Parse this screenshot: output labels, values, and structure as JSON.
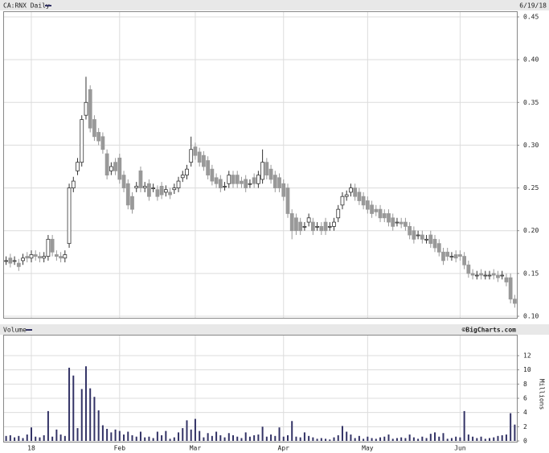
{
  "chart_data": [
    {
      "type": "candlestick",
      "title": "CA:RNX Daily",
      "date": "6/19/18",
      "categories": [
        null,
        null,
        null,
        null,
        null,
        null,
        "18",
        null,
        null,
        null,
        null,
        null,
        null,
        null,
        null,
        null,
        null,
        null,
        null,
        null,
        null,
        null,
        null,
        null,
        null,
        null,
        null,
        "Feb",
        null,
        null,
        null,
        null,
        null,
        null,
        null,
        null,
        null,
        null,
        null,
        null,
        null,
        null,
        null,
        null,
        null,
        "Mar",
        null,
        null,
        null,
        null,
        null,
        null,
        null,
        null,
        null,
        null,
        null,
        null,
        null,
        null,
        null,
        null,
        null,
        null,
        null,
        null,
        "Apr",
        null,
        null,
        null,
        null,
        null,
        null,
        null,
        null,
        null,
        null,
        null,
        null,
        null,
        null,
        null,
        null,
        null,
        null,
        null,
        "May",
        null,
        null,
        null,
        null,
        null,
        null,
        null,
        null,
        null,
        null,
        null,
        null,
        null,
        null,
        null,
        null,
        null,
        null,
        null,
        null,
        null,
        "Jun",
        null,
        null,
        null,
        null,
        null,
        null,
        null,
        null,
        null,
        null,
        null,
        null,
        null
      ],
      "open": [
        0.165,
        0.168,
        0.165,
        0.162,
        0.165,
        0.17,
        0.168,
        0.172,
        0.17,
        0.168,
        0.17,
        0.19,
        0.172,
        0.17,
        0.168,
        0.185,
        0.25,
        0.27,
        0.28,
        0.335,
        0.365,
        0.33,
        0.315,
        0.31,
        0.29,
        0.27,
        0.28,
        0.285,
        0.265,
        0.255,
        0.24,
        0.25,
        0.27,
        0.25,
        0.255,
        0.25,
        0.248,
        0.252,
        0.245,
        0.245,
        0.248,
        0.25,
        0.262,
        0.265,
        0.28,
        0.298,
        0.292,
        0.288,
        0.282,
        0.272,
        0.262,
        0.26,
        0.252,
        0.255,
        0.265,
        0.265,
        0.258,
        0.26,
        0.255,
        0.262,
        0.255,
        0.26,
        0.28,
        0.272,
        0.265,
        0.262,
        0.255,
        0.25,
        0.22,
        0.215,
        0.21,
        0.205,
        0.21,
        0.21,
        0.205,
        0.205,
        0.21,
        0.205,
        0.205,
        0.215,
        0.23,
        0.24,
        0.245,
        0.25,
        0.245,
        0.24,
        0.235,
        0.23,
        0.225,
        0.225,
        0.22,
        0.22,
        0.215,
        0.21,
        0.21,
        0.21,
        0.205,
        0.2,
        0.195,
        0.195,
        0.19,
        0.195,
        0.19,
        0.185,
        0.175,
        0.175,
        0.17,
        0.172,
        0.172,
        0.17,
        0.16,
        0.15,
        0.148,
        0.15,
        0.148,
        0.148,
        0.15,
        0.148,
        0.148,
        0.145,
        0.145,
        0.12
      ],
      "high": [
        0.17,
        0.173,
        0.17,
        0.167,
        0.173,
        0.175,
        0.177,
        0.177,
        0.175,
        0.175,
        0.195,
        0.195,
        0.177,
        0.175,
        0.177,
        0.255,
        0.263,
        0.285,
        0.335,
        0.38,
        0.37,
        0.335,
        0.32,
        0.315,
        0.295,
        0.28,
        0.285,
        0.29,
        0.27,
        0.26,
        0.245,
        0.257,
        0.275,
        0.257,
        0.26,
        0.255,
        0.253,
        0.257,
        0.253,
        0.25,
        0.255,
        0.263,
        0.27,
        0.277,
        0.31,
        0.303,
        0.297,
        0.293,
        0.287,
        0.277,
        0.267,
        0.265,
        0.257,
        0.27,
        0.27,
        0.27,
        0.263,
        0.265,
        0.26,
        0.267,
        0.27,
        0.295,
        0.285,
        0.277,
        0.27,
        0.267,
        0.26,
        0.255,
        0.225,
        0.22,
        0.215,
        0.21,
        0.22,
        0.215,
        0.21,
        0.21,
        0.215,
        0.21,
        0.215,
        0.23,
        0.245,
        0.247,
        0.255,
        0.255,
        0.25,
        0.245,
        0.24,
        0.235,
        0.23,
        0.23,
        0.225,
        0.225,
        0.22,
        0.215,
        0.215,
        0.215,
        0.21,
        0.205,
        0.2,
        0.2,
        0.195,
        0.2,
        0.195,
        0.19,
        0.18,
        0.18,
        0.175,
        0.177,
        0.177,
        0.175,
        0.165,
        0.155,
        0.153,
        0.155,
        0.153,
        0.153,
        0.155,
        0.153,
        0.153,
        0.15,
        0.15,
        0.125
      ],
      "low": [
        0.16,
        0.157,
        0.16,
        0.153,
        0.16,
        0.163,
        0.163,
        0.165,
        0.163,
        0.163,
        0.165,
        0.17,
        0.165,
        0.163,
        0.163,
        0.18,
        0.245,
        0.265,
        0.275,
        0.33,
        0.315,
        0.305,
        0.3,
        0.29,
        0.26,
        0.265,
        0.265,
        0.255,
        0.245,
        0.225,
        0.22,
        0.245,
        0.245,
        0.245,
        0.235,
        0.245,
        0.235,
        0.237,
        0.24,
        0.237,
        0.243,
        0.245,
        0.257,
        0.26,
        0.275,
        0.283,
        0.275,
        0.27,
        0.26,
        0.253,
        0.25,
        0.245,
        0.247,
        0.25,
        0.25,
        0.25,
        0.25,
        0.245,
        0.25,
        0.25,
        0.25,
        0.255,
        0.26,
        0.255,
        0.245,
        0.245,
        0.235,
        0.215,
        0.19,
        0.195,
        0.195,
        0.2,
        0.205,
        0.195,
        0.2,
        0.195,
        0.195,
        0.2,
        0.2,
        0.21,
        0.225,
        0.235,
        0.24,
        0.235,
        0.23,
        0.225,
        0.22,
        0.215,
        0.217,
        0.21,
        0.21,
        0.205,
        0.2,
        0.205,
        0.203,
        0.2,
        0.19,
        0.185,
        0.19,
        0.185,
        0.185,
        0.18,
        0.175,
        0.17,
        0.16,
        0.165,
        0.165,
        0.163,
        0.165,
        0.155,
        0.145,
        0.143,
        0.143,
        0.143,
        0.143,
        0.143,
        0.143,
        0.14,
        0.143,
        0.135,
        0.115,
        0.11
      ],
      "close": [
        0.165,
        0.162,
        0.165,
        0.158,
        0.168,
        0.168,
        0.172,
        0.17,
        0.168,
        0.17,
        0.19,
        0.175,
        0.17,
        0.168,
        0.172,
        0.25,
        0.258,
        0.28,
        0.33,
        0.35,
        0.32,
        0.31,
        0.305,
        0.295,
        0.265,
        0.275,
        0.27,
        0.26,
        0.25,
        0.23,
        0.225,
        0.252,
        0.25,
        0.252,
        0.24,
        0.25,
        0.24,
        0.242,
        0.248,
        0.242,
        0.25,
        0.258,
        0.265,
        0.272,
        0.295,
        0.288,
        0.28,
        0.275,
        0.265,
        0.258,
        0.255,
        0.25,
        0.252,
        0.265,
        0.255,
        0.255,
        0.255,
        0.25,
        0.255,
        0.255,
        0.265,
        0.28,
        0.265,
        0.26,
        0.25,
        0.25,
        0.24,
        0.22,
        0.2,
        0.2,
        0.2,
        0.205,
        0.215,
        0.2,
        0.205,
        0.2,
        0.2,
        0.205,
        0.21,
        0.225,
        0.24,
        0.242,
        0.25,
        0.24,
        0.235,
        0.23,
        0.225,
        0.22,
        0.222,
        0.215,
        0.215,
        0.21,
        0.205,
        0.21,
        0.208,
        0.205,
        0.195,
        0.19,
        0.195,
        0.19,
        0.19,
        0.185,
        0.18,
        0.175,
        0.165,
        0.17,
        0.17,
        0.168,
        0.17,
        0.16,
        0.15,
        0.148,
        0.148,
        0.148,
        0.148,
        0.148,
        0.148,
        0.145,
        0.148,
        0.14,
        0.12,
        0.115
      ],
      "up_color": "#ffffff",
      "down_color": "#999999",
      "ylim": [
        0.1,
        0.45
      ],
      "yticks": [
        0.45,
        {
          "value": 0.4,
          "label": "0.40"
        },
        0.35,
        {
          "value": 0.3,
          "label": "0.30"
        },
        0.25,
        {
          "value": 0.2,
          "label": "0.20"
        },
        0.15,
        {
          "value": 0.1,
          "label": "0.10"
        }
      ],
      "grid": true
    },
    {
      "type": "bar",
      "title": "Volume",
      "credit": "©BigCharts.com",
      "ylabel": "Millions",
      "color": "#333366",
      "values": [
        0.7,
        0.8,
        0.5,
        0.7,
        0.4,
        0.9,
        1.9,
        0.6,
        0.5,
        0.8,
        4.2,
        0.6,
        1.6,
        0.9,
        0.7,
        10.3,
        9.2,
        1.8,
        7.3,
        10.5,
        7.4,
        6.2,
        4.3,
        2.2,
        1.7,
        1.2,
        1.6,
        1.4,
        0.9,
        1.3,
        0.8,
        0.6,
        1.3,
        0.5,
        0.6,
        0.4,
        1.3,
        0.8,
        1.4,
        0.3,
        0.5,
        1.2,
        1.8,
        2.9,
        1.6,
        3.1,
        1.4,
        0.5,
        1.1,
        0.7,
        1.3,
        0.8,
        0.5,
        1.1,
        0.8,
        0.6,
        0.4,
        1.2,
        0.6,
        0.8,
        0.9,
        2,
        0.6,
        0.9,
        0.7,
        1.9,
        0.6,
        0.8,
        2.8,
        0.6,
        0.5,
        1.2,
        0.7,
        0.5,
        0.3,
        0.4,
        0.3,
        0.2,
        0.5,
        0.8,
        2.1,
        1.3,
        0.9,
        0.4,
        0.7,
        0.3,
        0.6,
        0.4,
        0.3,
        0.5,
        0.6,
        0.9,
        0.3,
        0.4,
        0.5,
        0.4,
        0.9,
        0.5,
        0.3,
        0.6,
        0.4,
        1,
        1.2,
        0.6,
        1.1,
        0.3,
        0.4,
        0.6,
        0.5,
        4.2,
        0.9,
        0.6,
        0.4,
        0.6,
        0.3,
        0.4,
        0.5,
        0.7,
        0.8,
        0.9,
        3.9,
        2.3
      ],
      "ylim": [
        0,
        12
      ],
      "yticks": [
        0,
        2,
        4,
        6,
        8,
        10,
        12
      ],
      "grid": true
    }
  ]
}
